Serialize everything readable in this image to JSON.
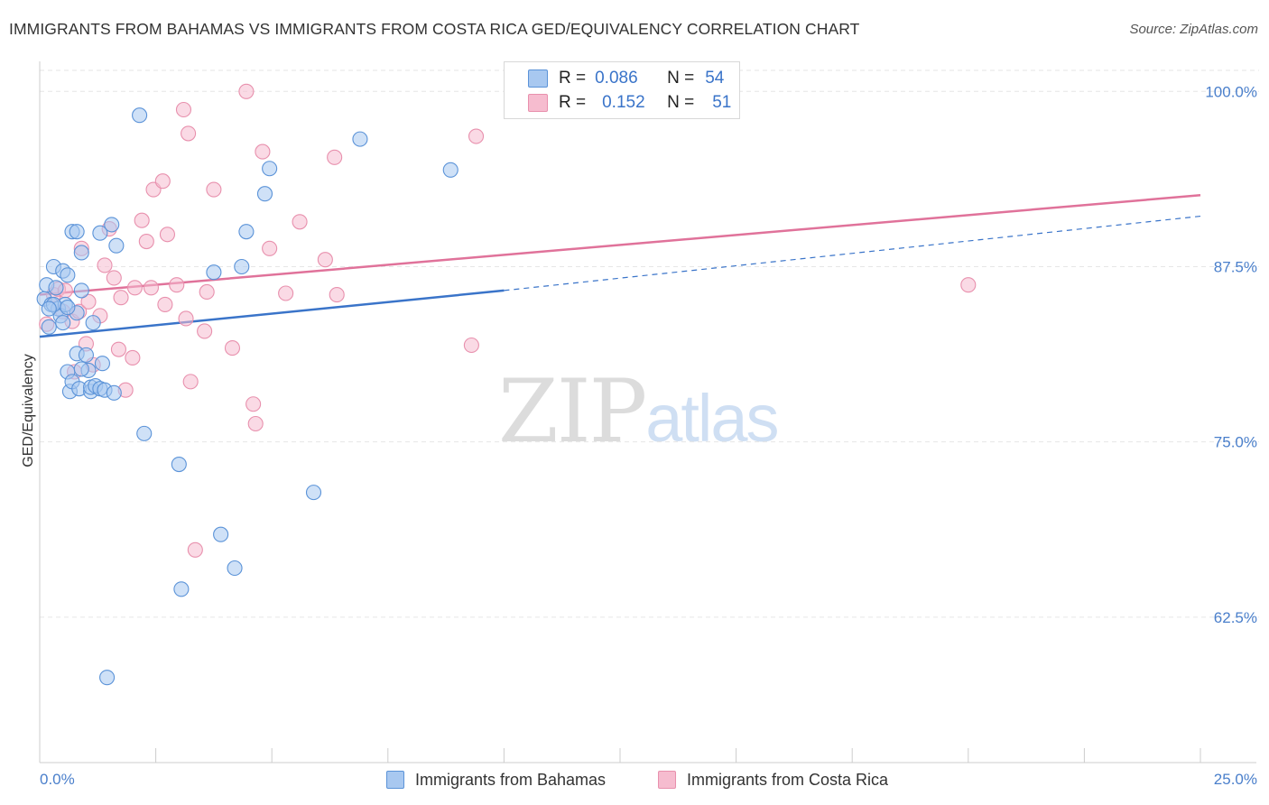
{
  "title": "IMMIGRANTS FROM BAHAMAS VS IMMIGRANTS FROM COSTA RICA GED/EQUIVALENCY CORRELATION CHART",
  "source": "Source: ZipAtlas.com",
  "watermark": {
    "zip": "ZIP",
    "atlas": "atlas"
  },
  "legend_top": {
    "rows": [
      {
        "r_label": "R =",
        "r_value": "0.086",
        "n_label": "N =",
        "n_value": "54"
      },
      {
        "r_label": "R =",
        "r_value": "0.152",
        "n_label": "N =",
        "n_value": "51"
      }
    ]
  },
  "legend_bottom": [
    "Immigrants from Bahamas",
    "Immigrants from Costa Rica"
  ],
  "colors": {
    "bahamas_fill": "#a8c8f0",
    "bahamas_stroke": "#5b93d8",
    "bahamas_line": "#3a74c9",
    "costarica_fill": "#f6bccf",
    "costarica_stroke": "#e890ad",
    "costarica_line": "#e0729a",
    "grid": "#e6e6e6",
    "axis_text": "#4a7fcb"
  },
  "chart_data": {
    "type": "scatter",
    "title": "IMMIGRANTS FROM BAHAMAS VS IMMIGRANTS FROM COSTA RICA GED/EQUIVALENCY CORRELATION CHART",
    "xlabel": "",
    "ylabel": "GED/Equivalency",
    "xlim": [
      0,
      25
    ],
    "ylim": [
      52,
      101.5
    ],
    "x_tick_labels": [
      "0.0%",
      "25.0%"
    ],
    "y_ticks": [
      62.5,
      75.0,
      87.5,
      100.0
    ],
    "y_tick_labels": [
      "62.5%",
      "75.0%",
      "87.5%",
      "100.0%"
    ],
    "grid": true,
    "series": [
      {
        "name": "Immigrants from Bahamas",
        "R": 0.086,
        "N": 54,
        "trend": {
          "x_solid": [
            0,
            10
          ],
          "y_solid": [
            82.5,
            85.8
          ],
          "x_dash": [
            10,
            25
          ],
          "y_dash": [
            85.8,
            91.1
          ]
        },
        "points": [
          [
            0.1,
            85.2
          ],
          [
            0.15,
            86.2
          ],
          [
            0.2,
            83.2
          ],
          [
            0.25,
            84.8
          ],
          [
            0.3,
            87.5
          ],
          [
            0.35,
            86.0
          ],
          [
            0.4,
            84.5
          ],
          [
            0.45,
            84.0
          ],
          [
            0.5,
            83.5
          ],
          [
            0.5,
            87.2
          ],
          [
            0.55,
            84.8
          ],
          [
            0.6,
            86.9
          ],
          [
            0.6,
            80.0
          ],
          [
            0.65,
            78.6
          ],
          [
            0.7,
            79.3
          ],
          [
            0.7,
            90.0
          ],
          [
            0.8,
            90.0
          ],
          [
            0.8,
            81.3
          ],
          [
            0.8,
            84.2
          ],
          [
            0.85,
            78.8
          ],
          [
            0.9,
            88.5
          ],
          [
            0.9,
            85.8
          ],
          [
            1.0,
            81.2
          ],
          [
            1.1,
            78.6
          ],
          [
            1.1,
            78.9
          ],
          [
            1.15,
            83.5
          ],
          [
            1.2,
            79.0
          ],
          [
            1.3,
            78.8
          ],
          [
            1.3,
            89.9
          ],
          [
            1.35,
            80.6
          ],
          [
            1.4,
            78.7
          ],
          [
            1.45,
            58.2
          ],
          [
            1.55,
            90.5
          ],
          [
            1.6,
            78.5
          ],
          [
            1.65,
            89.0
          ],
          [
            2.15,
            98.3
          ],
          [
            2.25,
            75.6
          ],
          [
            3.0,
            73.4
          ],
          [
            3.05,
            64.5
          ],
          [
            3.75,
            87.1
          ],
          [
            3.9,
            68.4
          ],
          [
            4.2,
            66.0
          ],
          [
            4.35,
            87.5
          ],
          [
            4.45,
            90.0
          ],
          [
            4.85,
            92.7
          ],
          [
            4.95,
            94.5
          ],
          [
            5.9,
            71.4
          ],
          [
            6.9,
            96.6
          ],
          [
            8.85,
            94.4
          ],
          [
            0.3,
            84.8
          ],
          [
            0.6,
            84.6
          ],
          [
            0.2,
            84.5
          ],
          [
            1.05,
            80.1
          ],
          [
            0.9,
            80.2
          ]
        ]
      },
      {
        "name": "Immigrants from Costa Rica",
        "R": 0.152,
        "N": 51,
        "trend": {
          "x": [
            0,
            25
          ],
          "y": [
            85.5,
            92.6
          ]
        },
        "points": [
          [
            0.15,
            83.4
          ],
          [
            0.3,
            85.5
          ],
          [
            0.4,
            85.9
          ],
          [
            0.5,
            84.3
          ],
          [
            0.55,
            85.8
          ],
          [
            0.7,
            83.6
          ],
          [
            0.75,
            80.0
          ],
          [
            0.85,
            84.3
          ],
          [
            0.9,
            88.8
          ],
          [
            1.0,
            82.0
          ],
          [
            1.05,
            85.0
          ],
          [
            1.15,
            80.5
          ],
          [
            1.3,
            84.0
          ],
          [
            1.4,
            87.6
          ],
          [
            1.5,
            90.2
          ],
          [
            1.6,
            86.7
          ],
          [
            1.7,
            81.6
          ],
          [
            1.75,
            85.3
          ],
          [
            1.85,
            78.7
          ],
          [
            2.0,
            81.0
          ],
          [
            2.05,
            86.0
          ],
          [
            2.2,
            90.8
          ],
          [
            2.3,
            89.3
          ],
          [
            2.4,
            86.0
          ],
          [
            2.45,
            93.0
          ],
          [
            2.65,
            93.6
          ],
          [
            2.7,
            84.8
          ],
          [
            2.75,
            89.8
          ],
          [
            2.95,
            86.2
          ],
          [
            3.1,
            98.7
          ],
          [
            3.15,
            83.8
          ],
          [
            3.2,
            97.0
          ],
          [
            3.25,
            79.3
          ],
          [
            3.35,
            67.3
          ],
          [
            3.55,
            82.9
          ],
          [
            3.6,
            85.7
          ],
          [
            3.75,
            93.0
          ],
          [
            4.15,
            81.7
          ],
          [
            4.45,
            100.0
          ],
          [
            4.6,
            77.7
          ],
          [
            4.65,
            76.3
          ],
          [
            4.8,
            95.7
          ],
          [
            4.95,
            88.8
          ],
          [
            5.3,
            85.6
          ],
          [
            5.6,
            90.7
          ],
          [
            6.15,
            88.0
          ],
          [
            6.35,
            95.3
          ],
          [
            6.4,
            85.5
          ],
          [
            9.3,
            81.9
          ],
          [
            9.4,
            96.8
          ],
          [
            20.0,
            86.2
          ]
        ]
      }
    ]
  }
}
